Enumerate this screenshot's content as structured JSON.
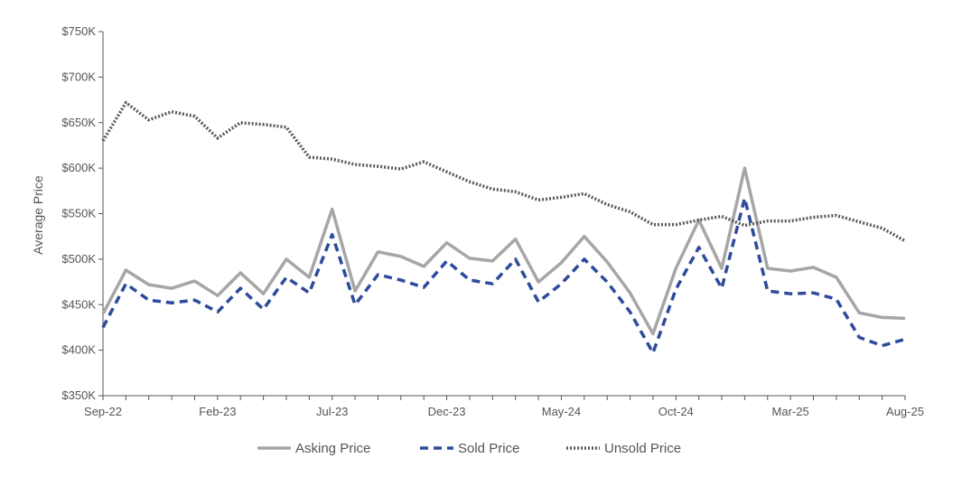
{
  "chart_data": {
    "type": "line",
    "ylabel": "Average Price",
    "xlabel": "",
    "ylim": [
      350000,
      750000
    ],
    "yticks": [
      350000,
      400000,
      450000,
      500000,
      550000,
      600000,
      650000,
      700000,
      750000
    ],
    "ytick_labels": [
      "$350K",
      "$400K",
      "$450K",
      "$500K",
      "$550K",
      "$600K",
      "$650K",
      "$700K",
      "$750K"
    ],
    "x": [
      "Sep-22",
      "Oct-22",
      "Nov-22",
      "Dec-22",
      "Jan-23",
      "Feb-23",
      "Mar-23",
      "Apr-23",
      "May-23",
      "Jun-23",
      "Jul-23",
      "Aug-23",
      "Sep-23",
      "Oct-23",
      "Nov-23",
      "Dec-23",
      "Jan-24",
      "Feb-24",
      "Mar-24",
      "Apr-24",
      "May-24",
      "Jun-24",
      "Jul-24",
      "Aug-24",
      "Sep-24",
      "Oct-24",
      "Nov-24",
      "Dec-24",
      "Jan-25",
      "Feb-25",
      "Mar-25",
      "Apr-25",
      "May-25",
      "Jun-25",
      "Jul-25",
      "Aug-25"
    ],
    "xtick_labels": [
      "Sep-22",
      "Feb-23",
      "Jul-23",
      "Dec-23",
      "May-24",
      "Oct-24",
      "Mar-25",
      "Aug-25"
    ],
    "legend_position": "bottom",
    "grid": false,
    "series": [
      {
        "name": "Asking Price",
        "color": "#a6a6a6",
        "style": "solid",
        "values": [
          440000,
          488000,
          472000,
          468000,
          476000,
          460000,
          485000,
          462000,
          500000,
          480000,
          555000,
          465000,
          508000,
          503000,
          492000,
          518000,
          501000,
          498000,
          522000,
          475000,
          496000,
          525000,
          497000,
          463000,
          418000,
          490000,
          543000,
          490000,
          600000,
          490000,
          487000,
          491000,
          480000,
          441000,
          436000,
          435000
        ]
      },
      {
        "name": "Sold Price",
        "color": "#2e4a9c",
        "style": "dashed",
        "values": [
          425000,
          473000,
          455000,
          452000,
          455000,
          442000,
          468000,
          445000,
          480000,
          463000,
          527000,
          450000,
          483000,
          477000,
          469000,
          498000,
          477000,
          473000,
          500000,
          453000,
          473000,
          500000,
          475000,
          442000,
          397000,
          467000,
          513000,
          468000,
          567000,
          465000,
          462000,
          463000,
          456000,
          414000,
          405000,
          412000
        ]
      },
      {
        "name": "Unsold Price",
        "color": "#595959",
        "style": "dotted",
        "values": [
          630000,
          672000,
          653000,
          662000,
          657000,
          633000,
          650000,
          648000,
          645000,
          612000,
          610000,
          604000,
          602000,
          599000,
          607000,
          596000,
          585000,
          577000,
          574000,
          565000,
          568000,
          572000,
          560000,
          552000,
          538000,
          538000,
          543000,
          547000,
          537000,
          542000,
          542000,
          546000,
          548000,
          541000,
          534000,
          520000
        ]
      }
    ]
  }
}
